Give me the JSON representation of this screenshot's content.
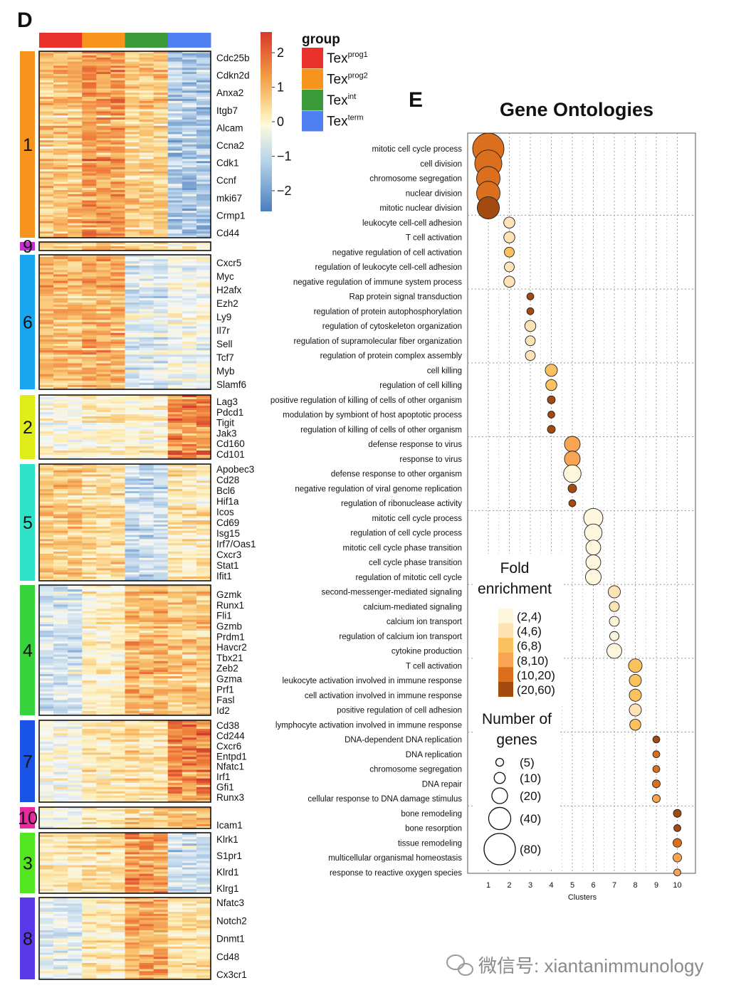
{
  "panel_d": {
    "label": "D",
    "group_legend": {
      "title": "group",
      "entries": [
        {
          "base": "Tex",
          "sup": "prog1",
          "color": "#e8312b"
        },
        {
          "base": "Tex",
          "sup": "prog2",
          "color": "#f7941d"
        },
        {
          "base": "Tex",
          "sup": "int",
          "color": "#3a9a3a"
        },
        {
          "base": "Tex",
          "sup": "term",
          "color": "#4f7ff0"
        }
      ]
    },
    "color_scale": {
      "ticks": [
        "2",
        "1",
        "0",
        "−1",
        "−2"
      ],
      "tick_values": [
        2,
        1,
        0,
        -1,
        -2
      ],
      "range": [
        -2.6,
        2.6
      ],
      "colors_high_to_low": [
        "#d7392a",
        "#f39c45",
        "#fde8a6",
        "#fdfae0",
        "#b6d3ea",
        "#4a7ebf"
      ]
    },
    "column_groups": [
      "Tex prog1",
      "Tex prog2",
      "Tex int",
      "Tex term"
    ],
    "columns_per_group": 3,
    "clusters": [
      {
        "id": "1",
        "color": "#f7941d",
        "n_rows": 90,
        "profile": [
          0.7,
          1.2,
          0.6,
          -1.2
        ],
        "genes": [
          "Cdc25b",
          "Cdkn2d",
          "Anxa2",
          "Itgb7",
          "Alcam",
          "Ccna2",
          "Cdk1",
          "Ccnf",
          "mki67",
          "Crmp1",
          "Cd44"
        ]
      },
      {
        "id": "9",
        "color": "#c42fd1",
        "n_rows": 4,
        "profile": [
          0.3,
          0.9,
          0.3,
          -0.2
        ],
        "genes": []
      },
      {
        "id": "6",
        "color": "#1aa6ef",
        "n_rows": 62,
        "profile": [
          0.8,
          0.9,
          -0.6,
          -0.3
        ],
        "genes": [
          "Cxcr5",
          "Myc",
          "H2afx",
          "Ezh2",
          "Ly9",
          "Il7r",
          "Sell",
          "Tcf7",
          "Myb",
          "Slamf6"
        ]
      },
      {
        "id": "2",
        "color": "#dfee1a",
        "n_rows": 30,
        "profile": [
          -0.1,
          0.1,
          0.0,
          1.4
        ],
        "genes": [
          "Lag3",
          "Pdcd1",
          "Tigit",
          "Jak3",
          "Cd160",
          "Cd101"
        ]
      },
      {
        "id": "5",
        "color": "#2ee3c8",
        "n_rows": 56,
        "profile": [
          0.6,
          0.4,
          -0.9,
          0.2
        ],
        "genes": [
          "Apobec3",
          "Cd28",
          "Bcl6",
          "Hif1a",
          "Icos",
          "Cd69",
          "Isg15",
          "Irf7/Oas1",
          "Cxcr3",
          "Stat1",
          "Ifit1"
        ]
      },
      {
        "id": "4",
        "color": "#37d33c",
        "n_rows": 60,
        "profile": [
          -0.7,
          0.1,
          0.9,
          0.7
        ],
        "genes": [
          "Gzmk",
          "Runx1",
          "Fli1",
          "Gzmb",
          "Prdm1",
          "Havcr2",
          "Tbx21",
          "Zeb2",
          "Gzma",
          "Prf1",
          "Fasl",
          "Id2"
        ]
      },
      {
        "id": "7",
        "color": "#1954e6",
        "n_rows": 38,
        "profile": [
          -0.2,
          0.2,
          0.3,
          1.4
        ],
        "genes": [
          "Cd38",
          "Cd244",
          "Cxcr6",
          "Entpd1",
          "Nfatc1",
          "Irf1",
          "Gfi1",
          "Runx3"
        ]
      },
      {
        "id": "10",
        "color": "#e62aa0",
        "n_rows": 10,
        "profile": [
          -0.4,
          0.1,
          0.5,
          0.9
        ],
        "genes": [
          "Icam1"
        ]
      },
      {
        "id": "3",
        "color": "#54e620",
        "n_rows": 28,
        "profile": [
          0.2,
          0.3,
          1.2,
          -0.8
        ],
        "genes": [
          "Klrk1",
          "S1pr1",
          "Klrd1",
          "Klrg1"
        ]
      },
      {
        "id": "8",
        "color": "#5a3ae6",
        "n_rows": 40,
        "profile": [
          -0.5,
          0.2,
          1.0,
          0.3
        ],
        "genes": [
          "Nfatc3",
          "Notch2",
          "Dnmt1",
          "Cd48",
          "Cx3cr1"
        ]
      }
    ]
  },
  "panel_e": {
    "label": "E",
    "title": "Gene Ontologies",
    "xlabel": "Clusters",
    "x_ticks": [
      "1",
      "2",
      "3",
      "4",
      "5",
      "6",
      "7",
      "8",
      "9",
      "10"
    ],
    "terms": [
      {
        "term": "mitotic cell cycle process",
        "cluster": 1,
        "genes": 80,
        "fe": "(10,20)"
      },
      {
        "term": "cell division",
        "cluster": 1,
        "genes": 60,
        "fe": "(10,20)"
      },
      {
        "term": "chromosome segregation",
        "cluster": 1,
        "genes": 45,
        "fe": "(10,20)"
      },
      {
        "term": "nuclear division",
        "cluster": 1,
        "genes": 45,
        "fe": "(10,20)"
      },
      {
        "term": "mitotic nuclear division",
        "cluster": 1,
        "genes": 40,
        "fe": "(20,60)"
      },
      {
        "term": "leukocyte cell-cell adhesion",
        "cluster": 2,
        "genes": 10,
        "fe": "(4,6)"
      },
      {
        "term": "T cell activation",
        "cluster": 2,
        "genes": 10,
        "fe": "(4,6)"
      },
      {
        "term": "negative regulation of cell activation",
        "cluster": 2,
        "genes": 8,
        "fe": "(6,8)"
      },
      {
        "term": "regulation of leukocyte cell-cell adhesion",
        "cluster": 2,
        "genes": 8,
        "fe": "(4,6)"
      },
      {
        "term": "negative regulation of immune system process",
        "cluster": 2,
        "genes": 10,
        "fe": "(4,6)"
      },
      {
        "term": "Rap protein signal transduction",
        "cluster": 3,
        "genes": 4,
        "fe": "(20,60)"
      },
      {
        "term": "regulation of protein autophosphorylation",
        "cluster": 3,
        "genes": 4,
        "fe": "(20,60)"
      },
      {
        "term": "regulation of cytoskeleton organization",
        "cluster": 3,
        "genes": 10,
        "fe": "(4,6)"
      },
      {
        "term": "regulation of supramolecular fiber organization",
        "cluster": 3,
        "genes": 8,
        "fe": "(4,6)"
      },
      {
        "term": "regulation of protein complex assembly",
        "cluster": 3,
        "genes": 8,
        "fe": "(4,6)"
      },
      {
        "term": "cell killing",
        "cluster": 4,
        "genes": 12,
        "fe": "(6,8)"
      },
      {
        "term": "regulation of cell killing",
        "cluster": 4,
        "genes": 10,
        "fe": "(6,8)"
      },
      {
        "term": "positive regulation of killing of cells of other organism",
        "cluster": 4,
        "genes": 5,
        "fe": "(20,60)"
      },
      {
        "term": "modulation by symbiont of host apoptotic process",
        "cluster": 4,
        "genes": 4,
        "fe": "(20,60)"
      },
      {
        "term": "regulation of killing of cells of other organism",
        "cluster": 4,
        "genes": 5,
        "fe": "(20,60)"
      },
      {
        "term": "defense response to virus",
        "cluster": 5,
        "genes": 20,
        "fe": "(8,10)"
      },
      {
        "term": "response to virus",
        "cluster": 5,
        "genes": 20,
        "fe": "(8,10)"
      },
      {
        "term": "defense response to other organism",
        "cluster": 5,
        "genes": 25,
        "fe": "(2,4)"
      },
      {
        "term": "negative regulation of viral genome replication",
        "cluster": 5,
        "genes": 6,
        "fe": "(20,60)"
      },
      {
        "term": "regulation of ribonuclease activity",
        "cluster": 5,
        "genes": 4,
        "fe": "(20,60)"
      },
      {
        "term": "mitotic cell cycle process",
        "cluster": 6,
        "genes": 30,
        "fe": "(2,4)"
      },
      {
        "term": "regulation of cell cycle process",
        "cluster": 6,
        "genes": 25,
        "fe": "(2,4)"
      },
      {
        "term": "mitotic cell cycle phase transition",
        "cluster": 6,
        "genes": 18,
        "fe": "(2,4)"
      },
      {
        "term": "cell cycle phase transition",
        "cluster": 6,
        "genes": 18,
        "fe": "(2,4)"
      },
      {
        "term": "regulation of mitotic cell cycle",
        "cluster": 6,
        "genes": 20,
        "fe": "(2,4)"
      },
      {
        "term": "second-messenger-mediated signaling",
        "cluster": 7,
        "genes": 12,
        "fe": "(4,6)"
      },
      {
        "term": "calcium-mediated signaling",
        "cluster": 7,
        "genes": 8,
        "fe": "(4,6)"
      },
      {
        "term": "calcium ion transport",
        "cluster": 7,
        "genes": 8,
        "fe": "(2,4)"
      },
      {
        "term": "regulation of calcium ion transport",
        "cluster": 7,
        "genes": 7,
        "fe": "(2,4)"
      },
      {
        "term": "cytokine production",
        "cluster": 7,
        "genes": 18,
        "fe": "(2,4)"
      },
      {
        "term": "T cell activation",
        "cluster": 8,
        "genes": 15,
        "fe": "(6,8)"
      },
      {
        "term": "leukocyte activation involved in immune response",
        "cluster": 8,
        "genes": 12,
        "fe": "(6,8)"
      },
      {
        "term": "cell activation involved in immune response",
        "cluster": 8,
        "genes": 12,
        "fe": "(6,8)"
      },
      {
        "term": "positive regulation of cell adhesion",
        "cluster": 8,
        "genes": 12,
        "fe": "(4,6)"
      },
      {
        "term": "lymphocyte activation involved in immune response",
        "cluster": 8,
        "genes": 10,
        "fe": "(6,8)"
      },
      {
        "term": "DNA-dependent DNA replication",
        "cluster": 9,
        "genes": 4,
        "fe": "(20,60)"
      },
      {
        "term": "DNA replication",
        "cluster": 9,
        "genes": 4,
        "fe": "(10,20)"
      },
      {
        "term": "chromosome segregation",
        "cluster": 9,
        "genes": 4,
        "fe": "(10,20)"
      },
      {
        "term": "DNA repair",
        "cluster": 9,
        "genes": 5,
        "fe": "(10,20)"
      },
      {
        "term": "cellular response to DNA damage stimulus",
        "cluster": 9,
        "genes": 5,
        "fe": "(8,10)"
      },
      {
        "term": "bone remodeling",
        "cluster": 10,
        "genes": 5,
        "fe": "(20,60)"
      },
      {
        "term": "bone resorption",
        "cluster": 10,
        "genes": 4,
        "fe": "(20,60)"
      },
      {
        "term": "tissue remodeling",
        "cluster": 10,
        "genes": 6,
        "fe": "(10,20)"
      },
      {
        "term": "multicellular organismal homeostasis",
        "cluster": 10,
        "genes": 6,
        "fe": "(8,10)"
      },
      {
        "term": "response to reactive oxygen species",
        "cluster": 10,
        "genes": 4,
        "fe": "(8,10)"
      }
    ],
    "fold_legend": {
      "title_lines": [
        "Fold",
        "enrichment"
      ],
      "items": [
        {
          "label": "(2,4)",
          "color": "#fef6dd"
        },
        {
          "label": "(4,6)",
          "color": "#fde3b6"
        },
        {
          "label": "(6,8)",
          "color": "#fbc15e"
        },
        {
          "label": "(8,10)",
          "color": "#f8a452"
        },
        {
          "label": "(10,20)",
          "color": "#db6f1d"
        },
        {
          "label": "(20,60)",
          "color": "#a34a10"
        }
      ]
    },
    "size_legend": {
      "title_lines": [
        "Number of",
        "genes"
      ],
      "items": [
        {
          "label": "(5)",
          "n": 5
        },
        {
          "label": "(10)",
          "n": 10
        },
        {
          "label": "(20)",
          "n": 20
        },
        {
          "label": "(40)",
          "n": 40
        },
        {
          "label": "(80)",
          "n": 80
        }
      ]
    }
  },
  "watermark": "微信号: xiantanimmunology"
}
